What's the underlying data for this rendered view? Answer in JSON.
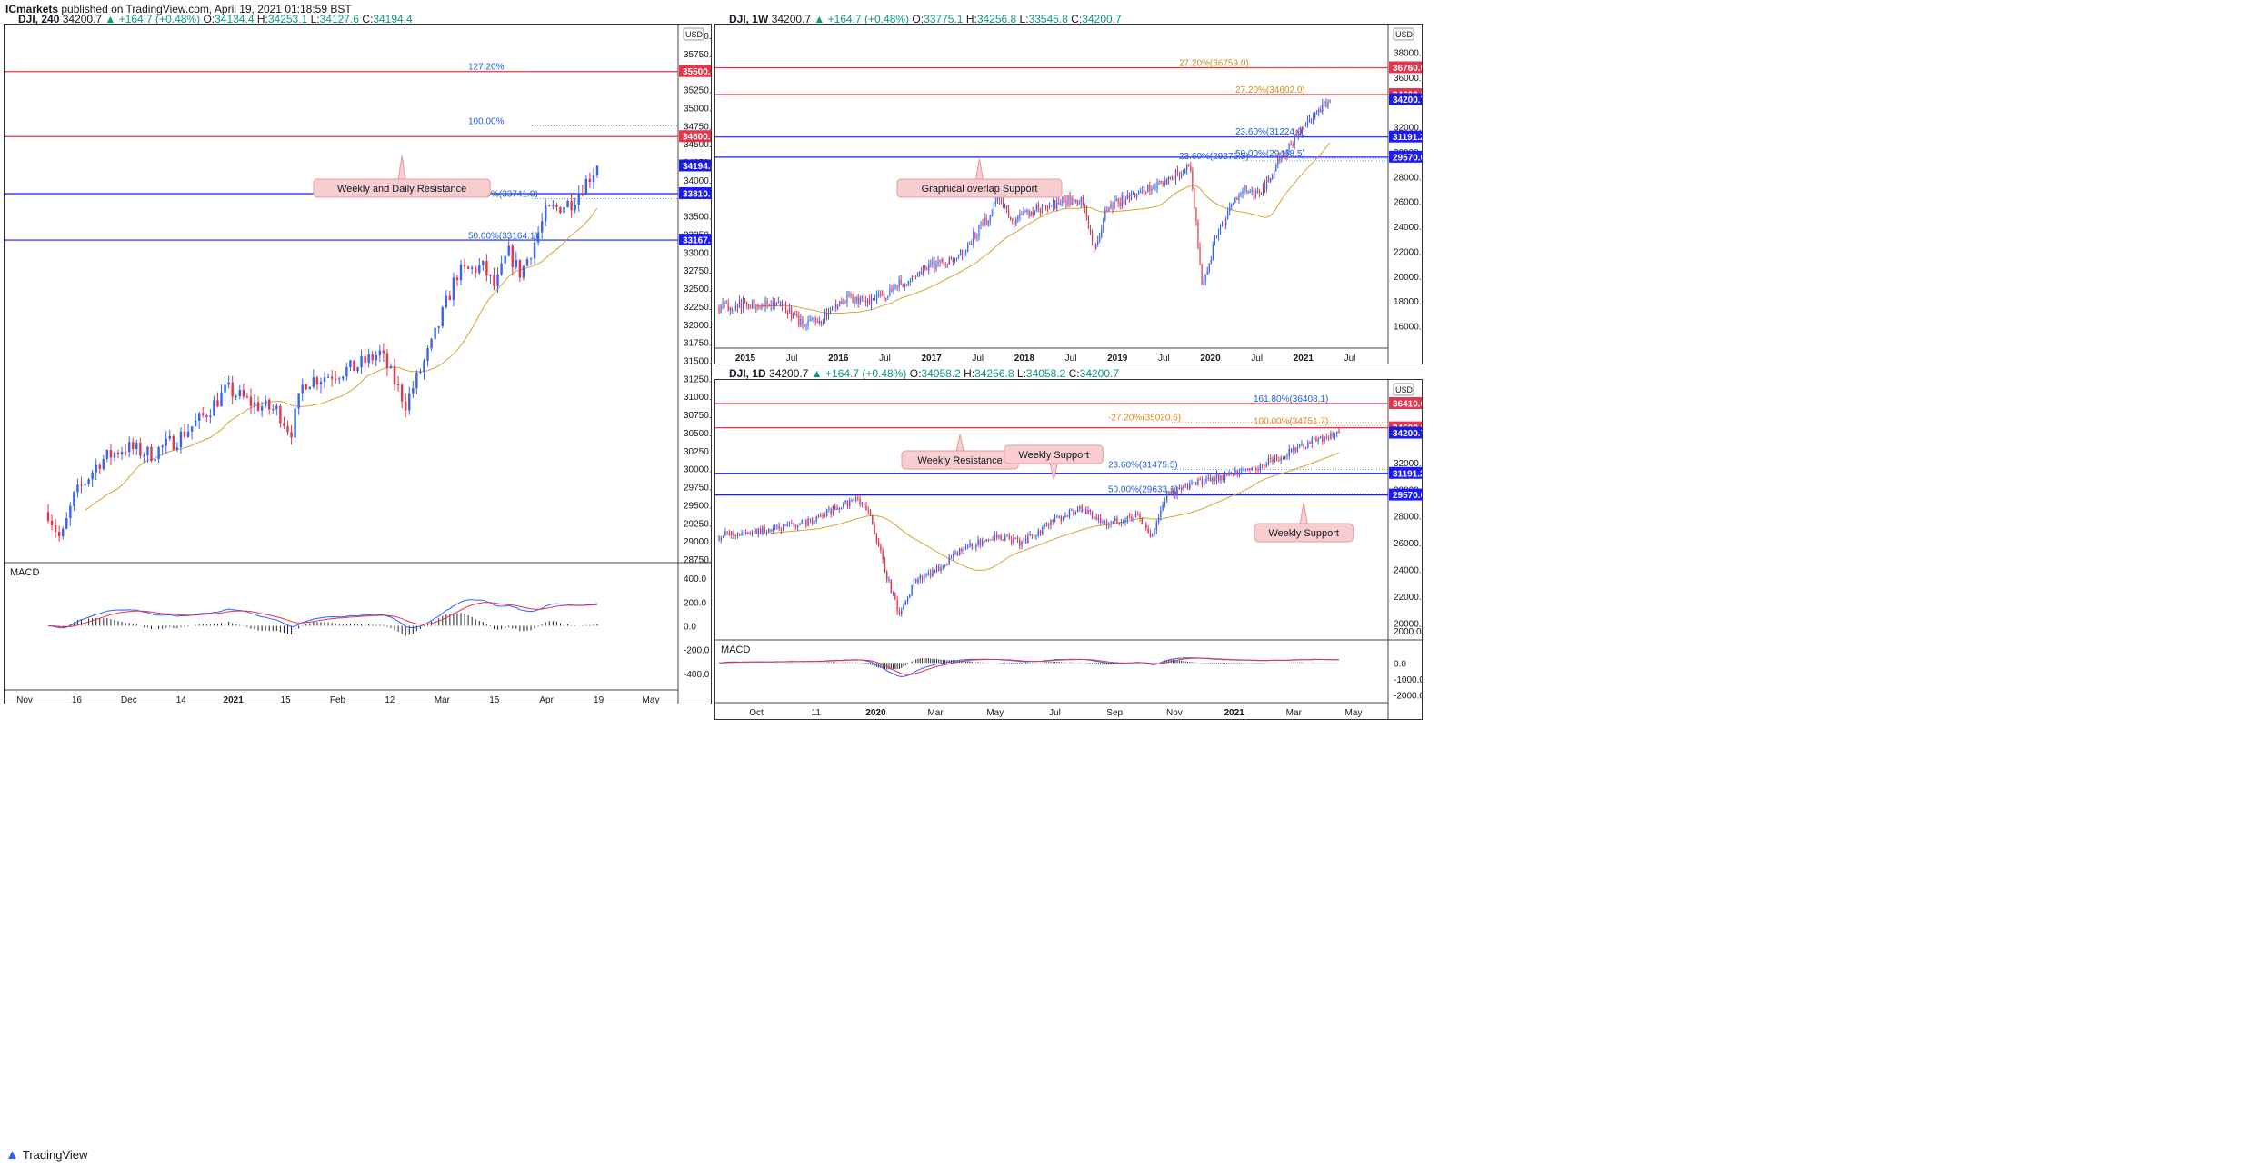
{
  "header": {
    "publisher": "ICmarkets",
    "text": "published on TradingView.com, April 19, 2021 01:18:59 BST"
  },
  "footer": {
    "brand": "TradingView"
  },
  "colors": {
    "up": "#3a63e8",
    "down": "#e8334a",
    "ma": "#d9a233",
    "macd": "#2962ff",
    "signal": "#e8334a",
    "res": "#e8334a",
    "sup": "#1a1aff",
    "fib_blue": "#1c5fd6",
    "fib_orange": "#d98b1a"
  },
  "panels": {
    "left": {
      "title": {
        "sym": "DJI, 240",
        "price": "34200.7",
        "change": "+164.7 (+0.48%)",
        "o": "34134.4",
        "h": "34253.1",
        "l": "34127.6",
        "c": "34194.4"
      },
      "currency": "USD",
      "macd_label": "MACD",
      "chart_data": {
        "type": "candlestick",
        "timeframe": "240",
        "y_ticks": [
          28750,
          29000,
          29250,
          29500,
          29750,
          30000,
          30250,
          30500,
          30750,
          31000,
          31250,
          31500,
          31750,
          32000,
          32250,
          32500,
          32750,
          33000,
          33250,
          33500,
          34000,
          34250,
          34500,
          34750,
          35000,
          35250,
          35500,
          35750,
          36000
        ],
        "ylim": [
          28750,
          36000
        ],
        "x_labels": [
          "Nov",
          "16",
          "Dec",
          "14",
          "2021",
          "15",
          "Feb",
          "12",
          "Mar",
          "15",
          "Apr",
          "19",
          "May"
        ],
        "path": [
          [
            0,
            29400
          ],
          [
            2,
            29000
          ],
          [
            4,
            29600
          ],
          [
            8,
            30100
          ],
          [
            12,
            30300
          ],
          [
            16,
            30200
          ],
          [
            20,
            30400
          ],
          [
            24,
            30700
          ],
          [
            28,
            31100
          ],
          [
            32,
            30900
          ],
          [
            36,
            30800
          ],
          [
            38,
            30500
          ],
          [
            40,
            31200
          ],
          [
            44,
            31300
          ],
          [
            48,
            31400
          ],
          [
            52,
            31600
          ],
          [
            56,
            30900
          ],
          [
            60,
            31700
          ],
          [
            62,
            32200
          ],
          [
            64,
            32700
          ],
          [
            68,
            32800
          ],
          [
            70,
            32500
          ],
          [
            72,
            33000
          ],
          [
            74,
            32700
          ],
          [
            76,
            33100
          ],
          [
            78,
            33550
          ],
          [
            82,
            33700
          ],
          [
            86,
            34194
          ]
        ],
        "horizontal_lines": [
          {
            "price": 35500,
            "type": "resistance",
            "label": "35500.0"
          },
          {
            "price": 34600,
            "type": "resistance",
            "label": "34600.0"
          },
          {
            "price": 33810,
            "type": "support",
            "label": "33810.1"
          },
          {
            "price": 33167,
            "type": "support",
            "label": "33167.2"
          }
        ],
        "last_price_label": "34194.4",
        "fib_labels": [
          {
            "price": 35500,
            "text": "127.20%"
          },
          {
            "price": 34750,
            "text": "100.00%"
          },
          {
            "price": 33741,
            "text": "23.60%(33741.0)"
          },
          {
            "price": 33164,
            "text": "50.00%(33164.1)"
          }
        ],
        "annotations": [
          {
            "text": "Weekly and Daily Resistance",
            "price": 34600
          }
        ],
        "macd": {
          "label": "MACD",
          "y_ticks": [
            400,
            200,
            0,
            -200,
            -400
          ],
          "ylim": [
            -500,
            500
          ]
        }
      }
    },
    "top_right": {
      "title": {
        "sym": "DJI, 1W",
        "price": "34200.7",
        "change": "+164.7 (+0.48%)",
        "o": "33775.1",
        "h": "34256.8",
        "l": "33545.8",
        "c": "34200.7"
      },
      "currency": "USD",
      "chart_data": {
        "type": "candlestick",
        "timeframe": "1W",
        "y_ticks": [
          16000,
          18000,
          20000,
          22000,
          24000,
          26000,
          28000,
          30000,
          32000,
          36000,
          38000
        ],
        "ylim": [
          14500,
          39500
        ],
        "x_labels": [
          "2015",
          "Jul",
          "2016",
          "Jul",
          "2017",
          "Jul",
          "2018",
          "Jul",
          "2019",
          "Jul",
          "2020",
          "Jul",
          "2021",
          "Jul"
        ],
        "path": [
          [
            0,
            17500
          ],
          [
            5,
            17800
          ],
          [
            10,
            17600
          ],
          [
            13,
            16200
          ],
          [
            16,
            16500
          ],
          [
            20,
            18200
          ],
          [
            24,
            17800
          ],
          [
            28,
            19200
          ],
          [
            32,
            20500
          ],
          [
            38,
            21800
          ],
          [
            42,
            24500
          ],
          [
            44,
            26500
          ],
          [
            46,
            24500
          ],
          [
            50,
            25500
          ],
          [
            54,
            26000
          ],
          [
            57,
            26300
          ],
          [
            59,
            22000
          ],
          [
            61,
            25500
          ],
          [
            65,
            26500
          ],
          [
            70,
            27500
          ],
          [
            74,
            29000
          ],
          [
            76,
            19000
          ],
          [
            78,
            23000
          ],
          [
            82,
            27000
          ],
          [
            85,
            26500
          ],
          [
            88,
            29500
          ],
          [
            92,
            32000
          ],
          [
            96,
            34200
          ]
        ],
        "horizontal_lines": [
          {
            "price": 36760,
            "type": "resistance",
            "label": "36760.0"
          },
          {
            "price": 34600,
            "type": "resistance",
            "label": "34600.0"
          },
          {
            "price": 31191,
            "type": "support",
            "label": "31191.2"
          },
          {
            "price": 29570,
            "type": "support",
            "label": "29570.0"
          }
        ],
        "last_price_label": "34200.7",
        "fib_labels": [
          {
            "price": 36759,
            "text": "27.20%(36759.0)"
          },
          {
            "price": 34602,
            "text": "27.20%(34602.0)"
          },
          {
            "price": 31224,
            "text": "23.60%(31224.0)"
          },
          {
            "price": 29468,
            "text": "50.00%(29468.5)"
          },
          {
            "price": 29275,
            "text": "23.60%(29275.5)"
          }
        ],
        "annotations": [
          {
            "text": "Graphical overlap Support",
            "price": 29570
          }
        ]
      }
    },
    "bottom_right": {
      "title": {
        "sym": "DJI, 1D",
        "price": "34200.7",
        "change": "+164.7 (+0.48%)",
        "o": "34058.2",
        "h": "34256.8",
        "l": "34058.2",
        "c": "34200.7"
      },
      "currency": "USD",
      "macd_label": "MACD",
      "chart_data": {
        "type": "candlestick",
        "timeframe": "1D",
        "y_ticks": [
          20000,
          22000,
          24000,
          26000,
          28000,
          30000,
          32000
        ],
        "ylim": [
          19000,
          37500
        ],
        "x_labels": [
          "Oct",
          "11",
          "2020",
          "Mar",
          "May",
          "Jul",
          "Sep",
          "Nov",
          "2021",
          "Mar",
          "May"
        ],
        "path": [
          [
            0,
            26500
          ],
          [
            4,
            26800
          ],
          [
            8,
            27000
          ],
          [
            12,
            27500
          ],
          [
            16,
            28500
          ],
          [
            19,
            29300
          ],
          [
            21,
            28000
          ],
          [
            23,
            24000
          ],
          [
            25,
            20500
          ],
          [
            27,
            23000
          ],
          [
            30,
            24000
          ],
          [
            34,
            25500
          ],
          [
            38,
            26500
          ],
          [
            42,
            26000
          ],
          [
            46,
            27500
          ],
          [
            50,
            28500
          ],
          [
            54,
            27500
          ],
          [
            58,
            28000
          ],
          [
            60,
            26500
          ],
          [
            62,
            29500
          ],
          [
            66,
            30500
          ],
          [
            70,
            31000
          ],
          [
            74,
            31500
          ],
          [
            78,
            32500
          ],
          [
            82,
            33500
          ],
          [
            86,
            34200
          ]
        ],
        "horizontal_lines": [
          {
            "price": 36410,
            "type": "resistance",
            "label": "36410.0"
          },
          {
            "price": 34600,
            "type": "resistance",
            "label": "34600.0"
          },
          {
            "price": 31191,
            "type": "support",
            "label": "31191.2"
          },
          {
            "price": 29570,
            "type": "support",
            "label": "29570.0"
          }
        ],
        "last_price_label": "34200.7",
        "fib_labels": [
          {
            "price": 36408,
            "text": "161.80%(36408.1)"
          },
          {
            "price": 35020,
            "text": "-27.20%(35020.6)"
          },
          {
            "price": 34751,
            "text": "100.00%(34751.7)"
          },
          {
            "price": 31475,
            "text": "23.60%(31475.5)"
          },
          {
            "price": 29633,
            "text": "50.00%(29633.1)"
          }
        ],
        "annotations": [
          {
            "text": "Weekly Resistance",
            "price": 34600
          },
          {
            "text": "Weekly Support",
            "price": 31191
          },
          {
            "text": "Weekly Support",
            "price": 29570
          }
        ],
        "macd": {
          "label": "MACD",
          "y_ticks": [
            2000,
            0,
            -1000,
            -2000
          ],
          "ylim": [
            -2300,
            1200
          ]
        }
      }
    }
  }
}
